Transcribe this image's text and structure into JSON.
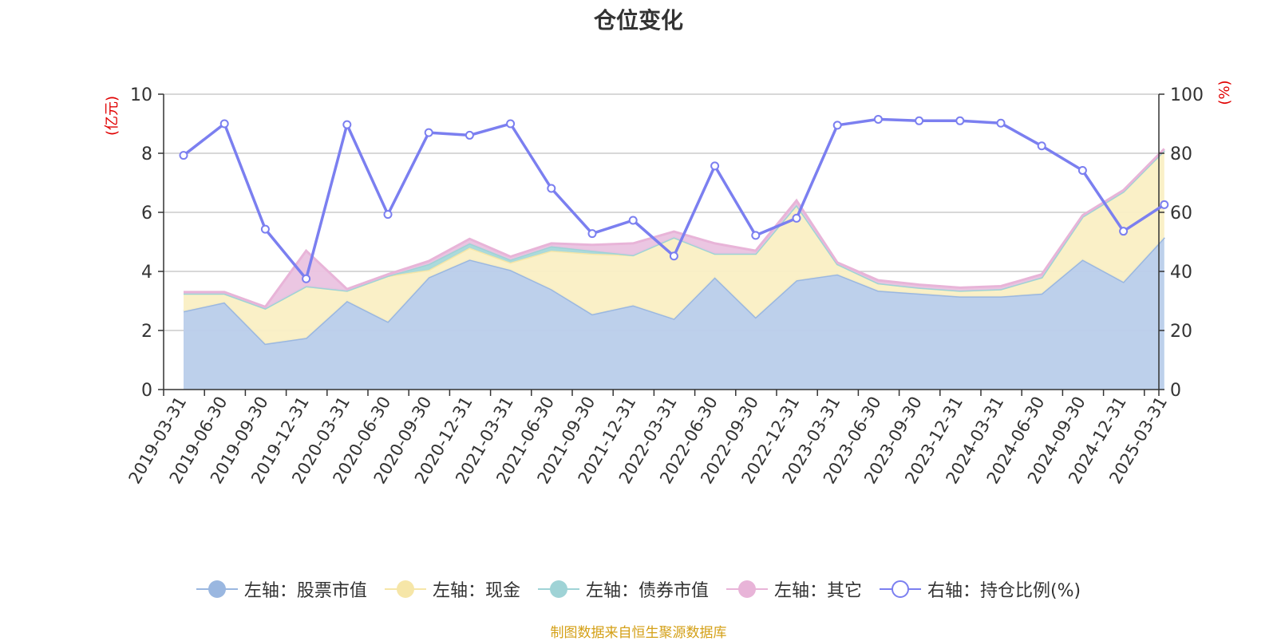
{
  "chart_data": {
    "type": "area",
    "title": "仓位变化",
    "left_axis_unit": "(亿元)",
    "right_axis_unit": "(%)",
    "ylim_left": [
      0,
      10
    ],
    "yticks_left": [
      "0",
      "2",
      "4",
      "6",
      "8",
      "10"
    ],
    "ylim_right": [
      0,
      100
    ],
    "yticks_right": [
      "0",
      "20",
      "40",
      "60",
      "80",
      "100"
    ],
    "categories": [
      "2019-03-31",
      "2019-06-30",
      "2019-09-30",
      "2019-12-31",
      "2020-03-31",
      "2020-06-30",
      "2020-09-30",
      "2020-12-31",
      "2021-03-31",
      "2021-06-30",
      "2021-09-30",
      "2021-12-31",
      "2022-03-31",
      "2022-06-30",
      "2022-09-30",
      "2022-12-31",
      "2023-03-31",
      "2023-06-30",
      "2023-09-30",
      "2023-12-31",
      "2024-03-31",
      "2024-06-30",
      "2024-09-30",
      "2024-12-31",
      "2025-03-31"
    ],
    "series": [
      {
        "name": "左轴：股票市值",
        "axis": "left",
        "stack": true,
        "color": "#9ab7e0",
        "fill": "#b9cdea",
        "values": [
          2.65,
          2.95,
          1.55,
          1.75,
          3.0,
          2.3,
          3.8,
          4.4,
          4.05,
          3.4,
          2.55,
          2.85,
          2.4,
          3.8,
          2.45,
          3.7,
          3.9,
          3.35,
          3.25,
          3.15,
          3.15,
          3.25,
          4.4,
          3.65,
          5.15
        ]
      },
      {
        "name": "左轴：现金",
        "axis": "left",
        "stack": true,
        "color": "#f6e6a8",
        "fill": "#faefc4",
        "values": [
          0.6,
          0.3,
          1.2,
          1.75,
          0.35,
          1.55,
          0.25,
          0.4,
          0.25,
          1.3,
          2.05,
          1.7,
          2.75,
          0.8,
          2.15,
          2.55,
          0.35,
          0.25,
          0.2,
          0.2,
          0.25,
          0.55,
          1.45,
          3.05,
          2.95
        ]
      },
      {
        "name": "左轴：债券市值",
        "axis": "left",
        "stack": true,
        "color": "#9fd3d6",
        "fill": "#a6d8da",
        "values": [
          0,
          0,
          0,
          0,
          0,
          0,
          0.2,
          0.15,
          0.1,
          0.15,
          0.1,
          0,
          0,
          0,
          0,
          0,
          0,
          0,
          0,
          0,
          0,
          0,
          0,
          0,
          0
        ]
      },
      {
        "name": "左轴：其它",
        "axis": "left",
        "stack": true,
        "color": "#e8b4d8",
        "fill": "#eac3e0",
        "values": [
          0.05,
          0.05,
          0.05,
          1.2,
          0.05,
          0.05,
          0.1,
          0.15,
          0.1,
          0.1,
          0.2,
          0.4,
          0.2,
          0.35,
          0.1,
          0.15,
          0.05,
          0.1,
          0.1,
          0.1,
          0.1,
          0.1,
          0.05,
          0.05,
          0.05
        ]
      },
      {
        "name": "右轴：持仓比例(%)",
        "axis": "right",
        "stack": false,
        "color": "#7b7ff0",
        "values": [
          79.3,
          90.0,
          54.3,
          37.5,
          89.7,
          59.3,
          87.0,
          86.1,
          90.0,
          68.1,
          52.8,
          57.3,
          45.2,
          75.7,
          52.2,
          58.0,
          89.5,
          91.5,
          91.0,
          91.0,
          90.2,
          82.5,
          74.2,
          53.6,
          62.6
        ]
      }
    ],
    "legend_position": "bottom",
    "grid": true
  },
  "source_text": "制图数据来自恒生聚源数据库"
}
